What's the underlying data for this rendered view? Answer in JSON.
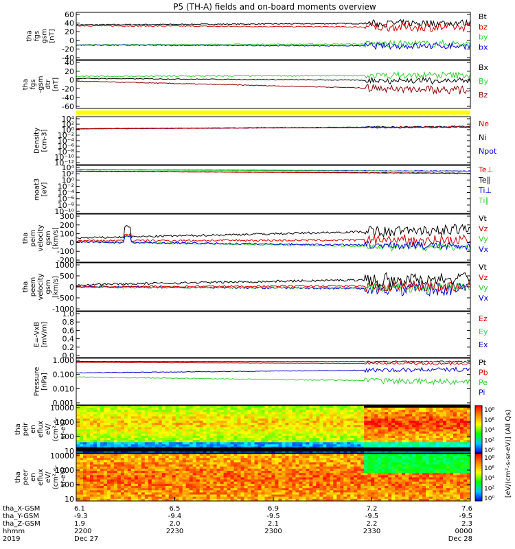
{
  "title": "P5 (TH-A) fields and on-board moments overview",
  "chart_data": [
    {
      "type": "line",
      "ylabel": [
        "tha",
        "fgs",
        "gsm",
        "[nT]"
      ],
      "yticks": [
        "60",
        "40",
        "20",
        "0",
        "-20",
        "-40"
      ],
      "ylim": [
        -40,
        60
      ],
      "legend": [
        {
          "label": "Bt",
          "color": "#000000"
        },
        {
          "label": "bz",
          "color": "#cc0000"
        },
        {
          "label": "by",
          "color": "#33cc33"
        },
        {
          "label": "bx",
          "color": "#0000cc"
        }
      ],
      "series": [
        {
          "name": "Bt",
          "color": "#000000",
          "base": 36,
          "end": 40,
          "noise": 1.2,
          "burst": 8
        },
        {
          "name": "bz",
          "color": "#cc0000",
          "base": 34,
          "end": 30,
          "noise": 1.2,
          "burst": 10
        },
        {
          "name": "by",
          "color": "#33cc33",
          "base": -10,
          "end": -8,
          "noise": 1.2,
          "burst": 8
        },
        {
          "name": "bx",
          "color": "#0000cc",
          "base": -11,
          "end": -13,
          "noise": 1.2,
          "burst": 7
        }
      ]
    },
    {
      "type": "line",
      "ylabel": [
        "tha",
        "fgs",
        "-gsm",
        "dtr",
        "[nT]"
      ],
      "yticks": [
        "40",
        "20",
        "0",
        "-20",
        "-40",
        "-60"
      ],
      "ylim": [
        -70,
        40
      ],
      "legend": [
        {
          "label": "Bx",
          "color": "#000000"
        },
        {
          "label": "By",
          "color": "#33cc33"
        },
        {
          "label": "Bz",
          "color": "#880000"
        }
      ],
      "series": [
        {
          "name": "By",
          "color": "#33cc33",
          "base": 5,
          "end": 8,
          "noise": 1.5,
          "burst": 8
        },
        {
          "name": "Bx",
          "color": "#000000",
          "base": 0,
          "end": -6,
          "noise": 1.0,
          "burst": 8
        },
        {
          "name": "Bz",
          "color": "#880000",
          "base": -7,
          "end": -30,
          "noise": 1.0,
          "burst": 10
        }
      ]
    },
    {
      "type": "line",
      "ylabel": [
        "Density",
        "[cm-3]"
      ],
      "yticks": [
        "10⁴",
        "10²",
        "10⁰",
        "10⁻²",
        "10⁻⁴",
        "10⁻⁶",
        "10⁻⁸",
        "10⁻¹⁰",
        "10⁻¹²"
      ],
      "yscale": "log",
      "ylim": [
        -12,
        4
      ],
      "legend": [
        {
          "label": "Ne",
          "color": "#cc0000"
        },
        {
          "label": "Ni",
          "color": "#000000"
        },
        {
          "label": "Npot",
          "color": "#0000cc"
        }
      ],
      "series": [
        {
          "name": "Npot",
          "color": "#0000cc",
          "base": 0.3,
          "end": 1.0,
          "noise": 0.08,
          "burst": 0.3
        },
        {
          "name": "Ni",
          "color": "#000000",
          "base": 0.4,
          "end": 1.1,
          "noise": 0.08,
          "burst": 0.3
        },
        {
          "name": "Ne",
          "color": "#cc0000",
          "base": 0.3,
          "end": 1.0,
          "noise": 0.05,
          "burst": 0.2
        }
      ]
    },
    {
      "type": "line",
      "ylabel": [
        "moat3",
        "[eV]"
      ],
      "yticks": [
        "10⁴",
        "10²",
        "10⁰",
        "10⁻²",
        "10⁻⁴",
        "10⁻⁶",
        "10⁻⁸",
        "10⁻¹⁰"
      ],
      "yscale": "log",
      "ylim": [
        -10,
        4.5
      ],
      "legend": [
        {
          "label": "Te⊥",
          "color": "#cc0000"
        },
        {
          "label": "Te∥",
          "color": "#000000"
        },
        {
          "label": "Ti⊥",
          "color": "#0000cc"
        },
        {
          "label": "Ti∥",
          "color": "#33cc33"
        }
      ],
      "series": [
        {
          "name": "Ti⊥",
          "color": "#0000cc",
          "base": 3.8,
          "end": 3.3,
          "noise": 0.04,
          "burst": 0.1
        },
        {
          "name": "Ti∥",
          "color": "#33cc33",
          "base": 3.7,
          "end": 3.2,
          "noise": 0.04,
          "burst": 0.1
        },
        {
          "name": "Te∥",
          "color": "#000000",
          "base": 3.3,
          "end": 2.6,
          "noise": 0.04,
          "burst": 0.1
        },
        {
          "name": "Te⊥",
          "color": "#cc0000",
          "base": 3.2,
          "end": 2.5,
          "noise": 0.04,
          "burst": 0.1
        }
      ]
    },
    {
      "type": "line",
      "ylabel": [
        "tha",
        "peim",
        "velocity",
        "gsm",
        "[km/s]"
      ],
      "yticks": [
        "300",
        "200",
        "100",
        "0",
        "-100",
        "-200"
      ],
      "ylim": [
        -200,
        300
      ],
      "legend": [
        {
          "label": "Vt",
          "color": "#000000"
        },
        {
          "label": "Vz",
          "color": "#cc0000"
        },
        {
          "label": "Vy",
          "color": "#33cc33"
        },
        {
          "label": "Vx",
          "color": "#0000cc"
        }
      ],
      "series": [
        {
          "name": "Vt",
          "color": "#000000",
          "base": 50,
          "end": 150,
          "noise": 12,
          "burst": 60
        },
        {
          "name": "Vz",
          "color": "#cc0000",
          "base": 20,
          "end": 30,
          "noise": 12,
          "burst": 60
        },
        {
          "name": "Vy",
          "color": "#33cc33",
          "base": 10,
          "end": -60,
          "noise": 10,
          "burst": 40
        },
        {
          "name": "Vx",
          "color": "#0000cc",
          "base": 5,
          "end": -40,
          "noise": 10,
          "burst": 40
        }
      ]
    },
    {
      "type": "line",
      "ylabel": [
        "tha",
        "peem",
        "velocity",
        "gsm",
        "[km/s]"
      ],
      "yticks": [
        "1000",
        "500",
        "0",
        "-500",
        "-1000"
      ],
      "ylim": [
        -1000,
        1000
      ],
      "legend": [
        {
          "label": "Vt",
          "color": "#000000"
        },
        {
          "label": "Vz",
          "color": "#cc0000"
        },
        {
          "label": "Vy",
          "color": "#33cc33"
        },
        {
          "label": "Vx",
          "color": "#0000cc"
        }
      ],
      "series": [
        {
          "name": "Vx",
          "color": "#0000cc",
          "base": 0,
          "end": -100,
          "noise": 40,
          "burst": 300
        },
        {
          "name": "Vy",
          "color": "#33cc33",
          "base": -20,
          "end": -50,
          "noise": 40,
          "burst": 200
        },
        {
          "name": "Vz",
          "color": "#cc0000",
          "base": 10,
          "end": 50,
          "noise": 40,
          "burst": 250
        },
        {
          "name": "Vt",
          "color": "#000000",
          "base": 100,
          "end": 400,
          "noise": 50,
          "burst": 300
        }
      ]
    },
    {
      "type": "line",
      "ylabel": [
        "E=-VxB",
        "[mV/m]"
      ],
      "yticks": [
        "1.0",
        "0.8",
        "0.6",
        "0.4",
        "0.2",
        "0.0"
      ],
      "ylim": [
        0,
        1
      ],
      "legend": [
        {
          "label": "Ez",
          "color": "#cc0000"
        },
        {
          "label": "Ey",
          "color": "#33cc33"
        },
        {
          "label": "Ex",
          "color": "#0000cc"
        }
      ],
      "series": []
    },
    {
      "type": "line",
      "ylabel": [
        "Pressure",
        "[nPa]"
      ],
      "yticks": [
        "1.000",
        "0.100",
        "0.010",
        "0.001"
      ],
      "yscale": "log",
      "ylim": [
        -3,
        0.05
      ],
      "legend": [
        {
          "label": "Pt",
          "color": "#000000"
        },
        {
          "label": "Pb",
          "color": "#cc0000"
        },
        {
          "label": "Pe",
          "color": "#33cc33"
        },
        {
          "label": "Pi",
          "color": "#0000cc"
        }
      ],
      "series": [
        {
          "name": "Pt",
          "color": "#000000",
          "base": -0.03,
          "end": -0.05,
          "noise": 0.01,
          "burst": 0.05
        },
        {
          "name": "Pb",
          "color": "#cc0000",
          "base": -0.1,
          "end": -0.2,
          "noise": 0.01,
          "burst": 0.08
        },
        {
          "name": "Pi",
          "color": "#0000cc",
          "base": -0.85,
          "end": -0.6,
          "noise": 0.02,
          "burst": 0.15
        },
        {
          "name": "Pe",
          "color": "#33cc33",
          "base": -1.15,
          "end": -1.5,
          "noise": 0.03,
          "burst": 0.2
        }
      ]
    },
    {
      "type": "heatmap",
      "ylabel": [
        "tha",
        "peir",
        "en",
        "eflux",
        "eV/",
        "(cm²-s-",
        "sr-eV)"
      ],
      "yticks": [
        "10000",
        "1000",
        "100",
        "10"
      ],
      "yscale": "log",
      "ylim": [
        5,
        20000
      ]
    },
    {
      "type": "heatmap",
      "ylabel": [
        "tha",
        "peer",
        "en",
        "eflux",
        "eV/",
        "(cm²-s-",
        "sr-eV)"
      ],
      "yticks": [
        "10000",
        "1000",
        "100",
        "10"
      ],
      "yscale": "log",
      "ylim": [
        5,
        20000
      ]
    }
  ],
  "colorbar": {
    "label": "[eV/(cm²-s-sr-eV)] (All Qs)",
    "top_ticks": [
      "10⁸",
      "10⁶",
      "10⁴",
      "10²",
      "10⁰"
    ],
    "bottom_ticks": [
      "10⁸",
      "10⁶",
      "10⁴",
      "10²",
      "10⁰"
    ]
  },
  "xaxis": {
    "row_labels": [
      "tha_X-GSM",
      "tha_Y-GSM",
      "tha_Z-GSM",
      "hhmm",
      "2019"
    ],
    "columns": [
      {
        "values": [
          "6.1",
          "-9.3",
          "1.9",
          "2200",
          "Dec 27"
        ]
      },
      {
        "values": [
          "6.5",
          "-9.4",
          "2.0",
          "2230",
          ""
        ]
      },
      {
        "values": [
          "6.9",
          "-9.5",
          "2.1",
          "2300",
          ""
        ]
      },
      {
        "values": [
          "7.2",
          "-9.5",
          "2.2",
          "2330",
          ""
        ]
      },
      {
        "values": [
          "7.6",
          "-9.5",
          "2.3",
          "0000",
          "Dec 28"
        ]
      }
    ]
  }
}
